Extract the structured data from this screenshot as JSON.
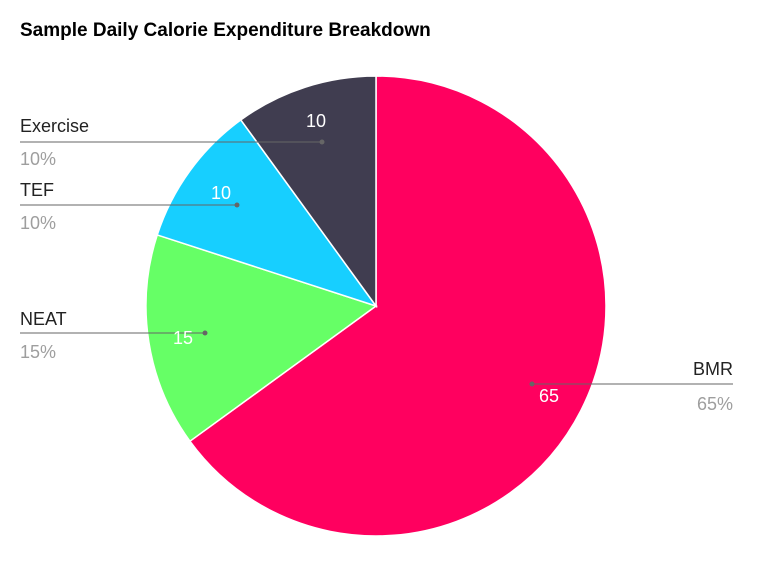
{
  "chart_data": {
    "type": "pie",
    "title": "Sample Daily Calorie Expenditure Breakdown",
    "start_angle_deg": 0,
    "direction": "clockwise",
    "slices": [
      {
        "label": "BMR",
        "value": 65,
        "value_label": "65",
        "percent_label": "65%",
        "color": "#ff005f"
      },
      {
        "label": "NEAT",
        "value": 15,
        "value_label": "15",
        "percent_label": "15%",
        "color": "#66ff66"
      },
      {
        "label": "TEF",
        "value": 10,
        "value_label": "10",
        "percent_label": "10%",
        "color": "#17cfff"
      },
      {
        "label": "Exercise",
        "value": 10,
        "value_label": "10",
        "percent_label": "10%",
        "color": "#403d50"
      }
    ]
  }
}
